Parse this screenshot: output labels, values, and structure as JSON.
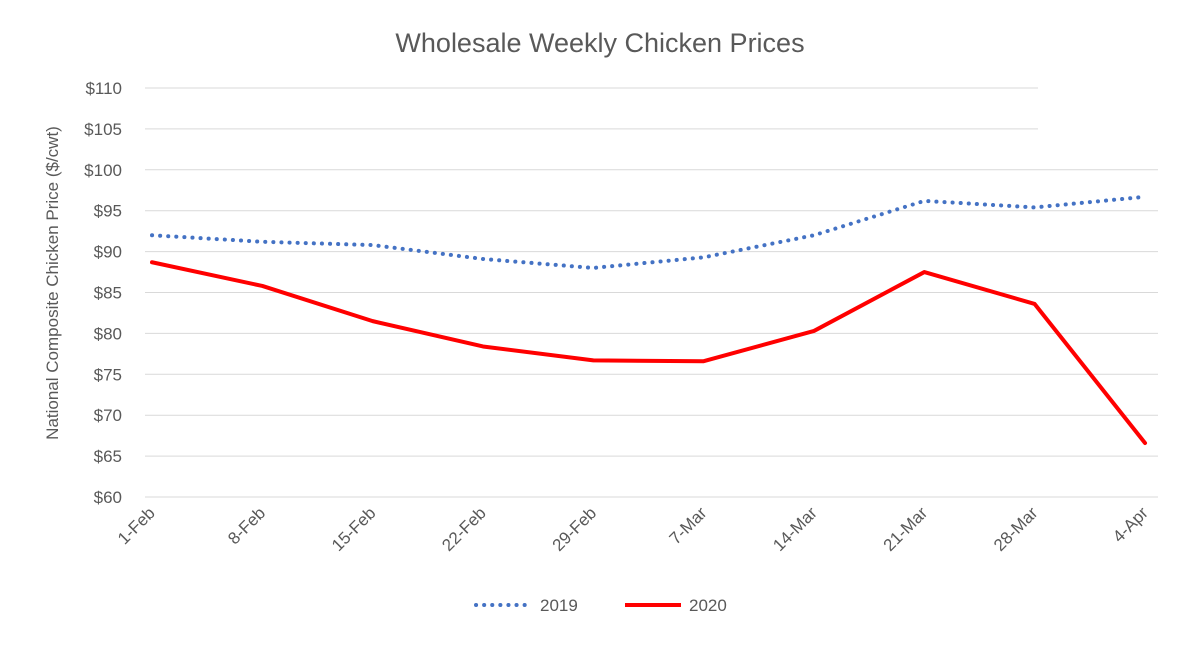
{
  "chart_data": {
    "type": "line",
    "title": "Wholesale Weekly Chicken Prices",
    "xlabel": "",
    "ylabel": "National Composite Chicken Price ($/cwt)",
    "categories": [
      "1-Feb",
      "8-Feb",
      "15-Feb",
      "22-Feb",
      "29-Feb",
      "7-Mar",
      "14-Mar",
      "21-Mar",
      "28-Mar",
      "4-Apr"
    ],
    "ylim": [
      60,
      110
    ],
    "yticks": [
      60,
      65,
      70,
      75,
      80,
      85,
      90,
      95,
      100,
      105,
      110
    ],
    "ytick_labels": [
      "$60",
      "$65",
      "$70",
      "$75",
      "$80",
      "$85",
      "$90",
      "$95",
      "$100",
      "$105",
      "$110"
    ],
    "grid": true,
    "legend_position": "bottom",
    "series": [
      {
        "name": "2019",
        "values": [
          92.0,
          91.2,
          90.8,
          89.1,
          88.0,
          89.3,
          92.0,
          96.2,
          95.4,
          96.7
        ],
        "color": "#4472c4",
        "style": "dotted"
      },
      {
        "name": "2020",
        "values": [
          88.7,
          85.8,
          81.5,
          78.4,
          76.7,
          76.6,
          80.3,
          87.5,
          83.6,
          66.6
        ],
        "color": "#ff0000",
        "style": "solid"
      }
    ]
  }
}
